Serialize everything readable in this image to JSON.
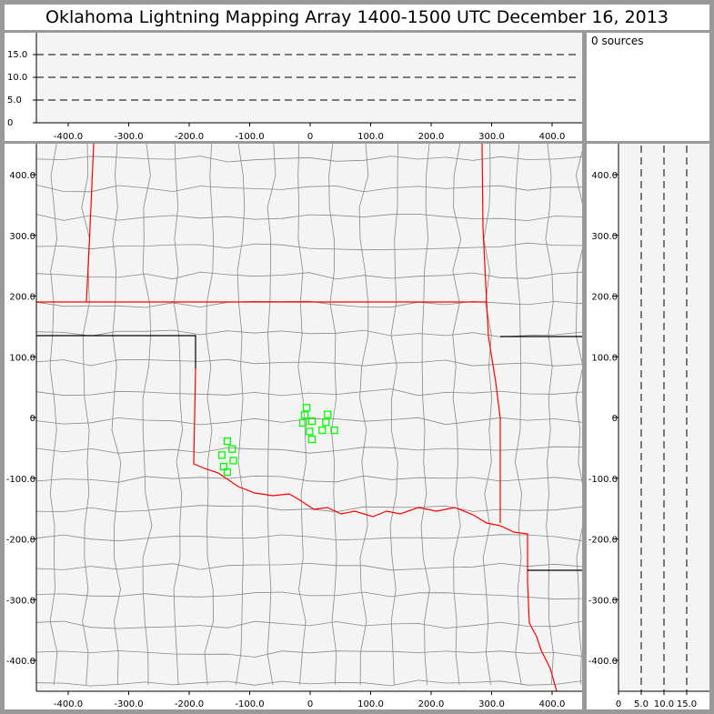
{
  "title": "Oklahoma Lightning Mapping Array   1400-1500 UTC  December 16, 2013",
  "source_count_label": "0 sources",
  "colors": {
    "state_border": "#ff0000",
    "county_border": "#888888",
    "source_marker": "#00ff00",
    "plot_background": "#f4f4f4",
    "frame": "#999999"
  },
  "chart_data": {
    "type": "scatter",
    "panels": {
      "altitude_vs_x": {
        "x_ticks": [
          "-400.0",
          "-300.0",
          "-200.0",
          "-100.0",
          "0",
          "100.0",
          "200.0",
          "300.0",
          "400.0"
        ],
        "y_ticks": [
          "0",
          "5.0",
          "10.0",
          "15.0"
        ],
        "xlim": [
          -450,
          450
        ],
        "ylim": [
          0,
          20
        ],
        "dashed_lines": [
          5,
          10,
          15
        ]
      },
      "plan_view": {
        "x_ticks": [
          "-400.0",
          "-300.0",
          "-200.0",
          "-100.0",
          "0",
          "100.0",
          "200.0",
          "300.0",
          "400.0"
        ],
        "y_ticks": [
          "400.0",
          "300.0",
          "200.0",
          "100.0",
          "0",
          "-100.0",
          "-200.0",
          "-300.0",
          "-400.0"
        ],
        "xlim": [
          -450,
          450
        ],
        "ylim": [
          -450,
          400
        ]
      },
      "altitude_vs_y": {
        "x_ticks": [
          "0",
          "5.0",
          "10.0",
          "15.0"
        ],
        "y_ticks": [
          "400.0",
          "300.0",
          "200.0",
          "100.0",
          "0",
          "-100.0",
          "-200.0",
          "-300.0",
          "-400.0"
        ],
        "xlim": [
          0,
          20
        ],
        "ylim": [
          -450,
          400
        ],
        "dashed_lines": [
          5,
          10,
          15
        ]
      }
    },
    "stations": [
      {
        "x": -6,
        "y": 16
      },
      {
        "x": -9,
        "y": 4
      },
      {
        "x": -12,
        "y": -9
      },
      {
        "x": 3,
        "y": -6
      },
      {
        "x": 29,
        "y": 5
      },
      {
        "x": 26,
        "y": -8
      },
      {
        "x": -1,
        "y": -23
      },
      {
        "x": 20,
        "y": -21
      },
      {
        "x": 40,
        "y": -21
      },
      {
        "x": 3,
        "y": -36
      },
      {
        "x": -137,
        "y": -39
      },
      {
        "x": -129,
        "y": -52
      },
      {
        "x": -146,
        "y": -62
      },
      {
        "x": -127,
        "y": -71
      },
      {
        "x": -143,
        "y": -81
      },
      {
        "x": -137,
        "y": -90
      }
    ]
  }
}
